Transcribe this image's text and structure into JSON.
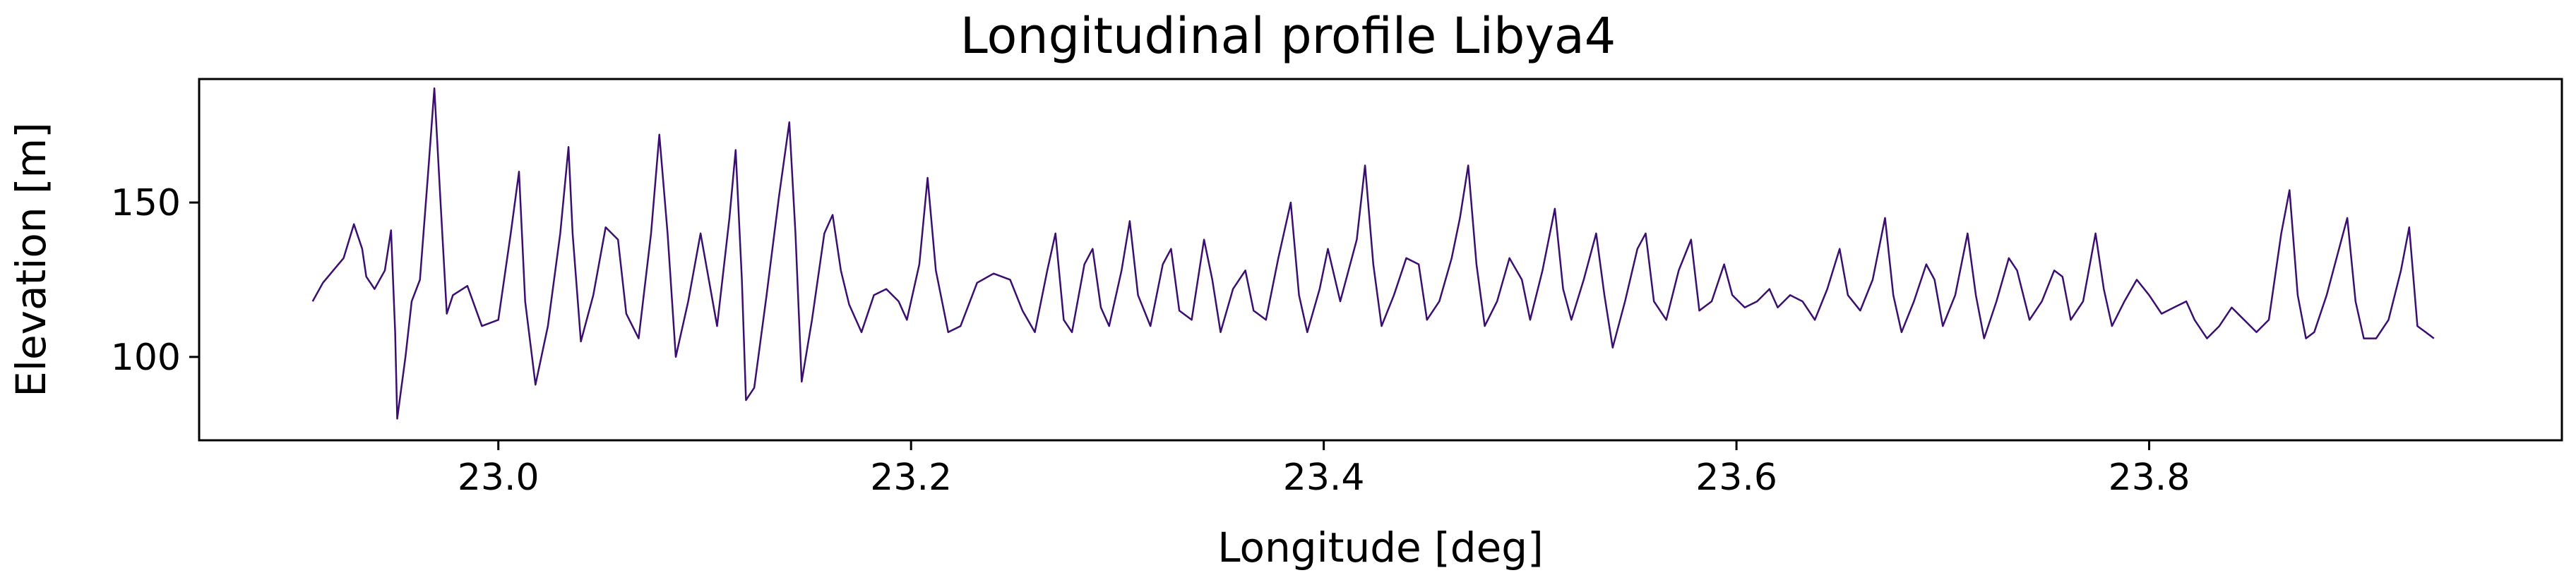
{
  "chart_data": {
    "type": "line",
    "title": "Longitudinal profile Libya4",
    "xlabel": "Longitude [deg]",
    "ylabel": "Elevation [m]",
    "xlim": [
      22.855,
      24.0
    ],
    "ylim": [
      73,
      190
    ],
    "xticks": [
      23.0,
      23.2,
      23.4,
      23.6,
      23.8
    ],
    "xtick_labels": [
      "23.0",
      "23.2",
      "23.4",
      "23.6",
      "23.8"
    ],
    "yticks": [
      100,
      150
    ],
    "ytick_labels": [
      "100",
      "150"
    ],
    "grid": false,
    "legend": false,
    "line_color": "#3b0f6f",
    "series": [
      {
        "values": [
          [
            22.91,
            118
          ],
          [
            22.915,
            124
          ],
          [
            22.92,
            128
          ],
          [
            22.925,
            132
          ],
          [
            22.93,
            143
          ],
          [
            22.934,
            135
          ],
          [
            22.936,
            126
          ],
          [
            22.94,
            122
          ],
          [
            22.945,
            128
          ],
          [
            22.948,
            141
          ],
          [
            22.95,
            108
          ],
          [
            22.951,
            80
          ],
          [
            22.955,
            100
          ],
          [
            22.958,
            118
          ],
          [
            22.962,
            125
          ],
          [
            22.966,
            160
          ],
          [
            22.969,
            187
          ],
          [
            22.972,
            150
          ],
          [
            22.975,
            114
          ],
          [
            22.978,
            120
          ],
          [
            22.985,
            123
          ],
          [
            22.992,
            110
          ],
          [
            23.0,
            112
          ],
          [
            23.006,
            140
          ],
          [
            23.01,
            160
          ],
          [
            23.013,
            118
          ],
          [
            23.018,
            91
          ],
          [
            23.024,
            110
          ],
          [
            23.03,
            140
          ],
          [
            23.034,
            168
          ],
          [
            23.036,
            140
          ],
          [
            23.04,
            105
          ],
          [
            23.046,
            120
          ],
          [
            23.052,
            142
          ],
          [
            23.058,
            138
          ],
          [
            23.062,
            114
          ],
          [
            23.068,
            106
          ],
          [
            23.074,
            140
          ],
          [
            23.078,
            172
          ],
          [
            23.082,
            140
          ],
          [
            23.086,
            100
          ],
          [
            23.092,
            118
          ],
          [
            23.098,
            140
          ],
          [
            23.102,
            125
          ],
          [
            23.106,
            110
          ],
          [
            23.112,
            145
          ],
          [
            23.115,
            167
          ],
          [
            23.118,
            125
          ],
          [
            23.12,
            86
          ],
          [
            23.124,
            90
          ],
          [
            23.13,
            120
          ],
          [
            23.136,
            152
          ],
          [
            23.141,
            176
          ],
          [
            23.144,
            140
          ],
          [
            23.147,
            92
          ],
          [
            23.152,
            112
          ],
          [
            23.158,
            140
          ],
          [
            23.162,
            146
          ],
          [
            23.166,
            128
          ],
          [
            23.17,
            117
          ],
          [
            23.176,
            108
          ],
          [
            23.182,
            120
          ],
          [
            23.188,
            122
          ],
          [
            23.194,
            118
          ],
          [
            23.198,
            112
          ],
          [
            23.204,
            130
          ],
          [
            23.208,
            158
          ],
          [
            23.212,
            128
          ],
          [
            23.218,
            108
          ],
          [
            23.224,
            110
          ],
          [
            23.232,
            124
          ],
          [
            23.24,
            127
          ],
          [
            23.248,
            125
          ],
          [
            23.254,
            115
          ],
          [
            23.26,
            108
          ],
          [
            23.266,
            128
          ],
          [
            23.27,
            140
          ],
          [
            23.274,
            112
          ],
          [
            23.278,
            108
          ],
          [
            23.284,
            130
          ],
          [
            23.288,
            135
          ],
          [
            23.292,
            116
          ],
          [
            23.296,
            110
          ],
          [
            23.302,
            128
          ],
          [
            23.306,
            144
          ],
          [
            23.31,
            120
          ],
          [
            23.316,
            110
          ],
          [
            23.322,
            130
          ],
          [
            23.326,
            135
          ],
          [
            23.33,
            115
          ],
          [
            23.336,
            112
          ],
          [
            23.342,
            138
          ],
          [
            23.346,
            125
          ],
          [
            23.35,
            108
          ],
          [
            23.356,
            122
          ],
          [
            23.362,
            128
          ],
          [
            23.366,
            115
          ],
          [
            23.372,
            112
          ],
          [
            23.378,
            132
          ],
          [
            23.384,
            150
          ],
          [
            23.388,
            120
          ],
          [
            23.392,
            108
          ],
          [
            23.398,
            122
          ],
          [
            23.402,
            135
          ],
          [
            23.408,
            118
          ],
          [
            23.412,
            128
          ],
          [
            23.416,
            138
          ],
          [
            23.42,
            162
          ],
          [
            23.424,
            130
          ],
          [
            23.428,
            110
          ],
          [
            23.434,
            120
          ],
          [
            23.44,
            132
          ],
          [
            23.446,
            130
          ],
          [
            23.45,
            112
          ],
          [
            23.456,
            118
          ],
          [
            23.462,
            132
          ],
          [
            23.466,
            145
          ],
          [
            23.47,
            162
          ],
          [
            23.474,
            130
          ],
          [
            23.478,
            110
          ],
          [
            23.484,
            118
          ],
          [
            23.49,
            132
          ],
          [
            23.496,
            125
          ],
          [
            23.5,
            112
          ],
          [
            23.506,
            128
          ],
          [
            23.512,
            148
          ],
          [
            23.516,
            122
          ],
          [
            23.52,
            112
          ],
          [
            23.526,
            125
          ],
          [
            23.532,
            140
          ],
          [
            23.536,
            120
          ],
          [
            23.54,
            103
          ],
          [
            23.546,
            118
          ],
          [
            23.552,
            135
          ],
          [
            23.556,
            140
          ],
          [
            23.56,
            118
          ],
          [
            23.566,
            112
          ],
          [
            23.572,
            128
          ],
          [
            23.578,
            138
          ],
          [
            23.582,
            115
          ],
          [
            23.588,
            118
          ],
          [
            23.594,
            130
          ],
          [
            23.598,
            120
          ],
          [
            23.604,
            116
          ],
          [
            23.61,
            118
          ],
          [
            23.616,
            122
          ],
          [
            23.62,
            116
          ],
          [
            23.626,
            120
          ],
          [
            23.632,
            118
          ],
          [
            23.638,
            112
          ],
          [
            23.644,
            122
          ],
          [
            23.65,
            135
          ],
          [
            23.654,
            120
          ],
          [
            23.66,
            115
          ],
          [
            23.666,
            125
          ],
          [
            23.672,
            145
          ],
          [
            23.676,
            120
          ],
          [
            23.68,
            108
          ],
          [
            23.686,
            118
          ],
          [
            23.692,
            130
          ],
          [
            23.696,
            125
          ],
          [
            23.7,
            110
          ],
          [
            23.706,
            120
          ],
          [
            23.712,
            140
          ],
          [
            23.716,
            120
          ],
          [
            23.72,
            106
          ],
          [
            23.726,
            118
          ],
          [
            23.732,
            132
          ],
          [
            23.736,
            128
          ],
          [
            23.742,
            112
          ],
          [
            23.748,
            118
          ],
          [
            23.754,
            128
          ],
          [
            23.758,
            126
          ],
          [
            23.762,
            112
          ],
          [
            23.768,
            118
          ],
          [
            23.774,
            140
          ],
          [
            23.778,
            122
          ],
          [
            23.782,
            110
          ],
          [
            23.788,
            118
          ],
          [
            23.794,
            125
          ],
          [
            23.8,
            120
          ],
          [
            23.806,
            114
          ],
          [
            23.812,
            116
          ],
          [
            23.818,
            118
          ],
          [
            23.822,
            112
          ],
          [
            23.828,
            106
          ],
          [
            23.834,
            110
          ],
          [
            23.84,
            116
          ],
          [
            23.846,
            112
          ],
          [
            23.852,
            108
          ],
          [
            23.858,
            112
          ],
          [
            23.864,
            140
          ],
          [
            23.868,
            154
          ],
          [
            23.872,
            120
          ],
          [
            23.876,
            106
          ],
          [
            23.88,
            108
          ],
          [
            23.886,
            120
          ],
          [
            23.892,
            135
          ],
          [
            23.896,
            145
          ],
          [
            23.9,
            118
          ],
          [
            23.904,
            106
          ],
          [
            23.91,
            106
          ],
          [
            23.916,
            112
          ],
          [
            23.922,
            128
          ],
          [
            23.926,
            142
          ],
          [
            23.93,
            110
          ],
          [
            23.934,
            108
          ],
          [
            23.938,
            106
          ]
        ]
      }
    ]
  }
}
